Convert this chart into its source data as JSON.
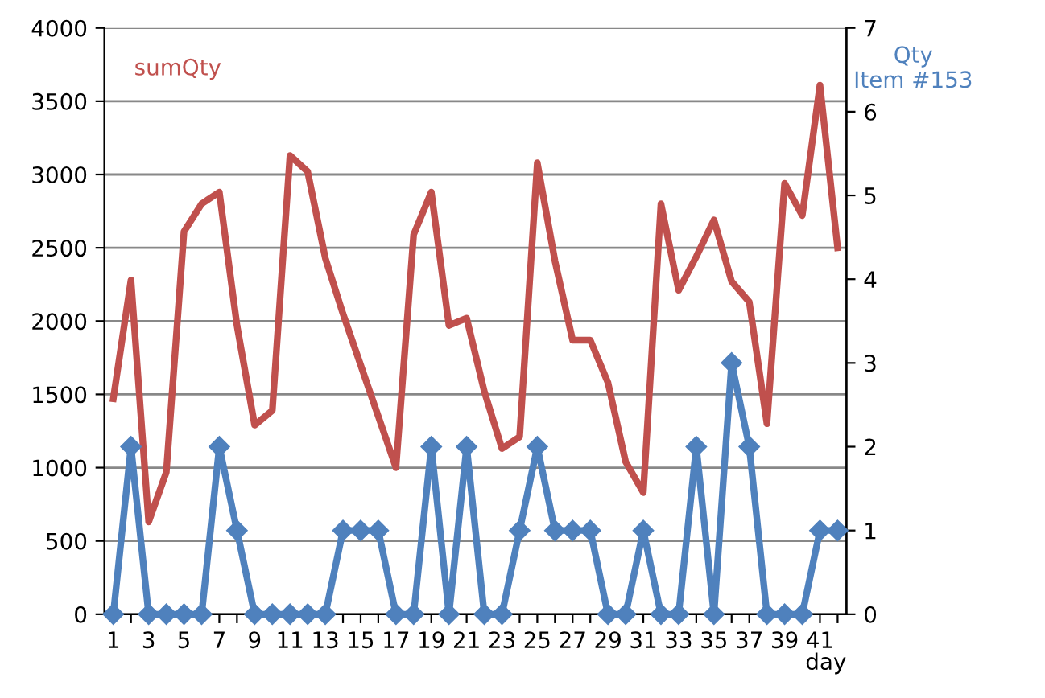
{
  "chart_data": {
    "type": "line",
    "xlabel": "day",
    "categories": [
      "1",
      null,
      "3",
      null,
      "5",
      null,
      "7",
      null,
      "9",
      null,
      "11",
      null,
      "13",
      null,
      "15",
      null,
      "17",
      null,
      "19",
      null,
      "21",
      null,
      "23",
      null,
      "25",
      null,
      "27",
      null,
      "29",
      null,
      "31",
      null,
      "33",
      null,
      "35",
      null,
      "37",
      null,
      "39",
      null,
      "41",
      null
    ],
    "series": [
      {
        "name": "sumQty",
        "color": "#c0504d",
        "marker": "none",
        "values": [
          1470,
          2280,
          630,
          970,
          2610,
          2800,
          2880,
          1970,
          1290,
          1390,
          3130,
          3020,
          2430,
          2050,
          1700,
          1350,
          1000,
          2590,
          2880,
          1970,
          2020,
          1520,
          1130,
          1210,
          3080,
          2410,
          1870,
          1870,
          1580,
          1040,
          830,
          2800,
          2210,
          2440,
          2690,
          2270,
          2130,
          1300,
          2940,
          2720,
          3610,
          2500
        ]
      },
      {
        "name": "Qty\nItem #153",
        "color": "#4f81bd",
        "marker": "diamond",
        "axis": "y2",
        "values": [
          0,
          2,
          0,
          0,
          0,
          0,
          2,
          1,
          0,
          0,
          0,
          0,
          0,
          1,
          1,
          1,
          0,
          0,
          2,
          0,
          2,
          0,
          0,
          1,
          2,
          1,
          1,
          1,
          0,
          0,
          1,
          0,
          0,
          2,
          0,
          3,
          2,
          0,
          0,
          0,
          1,
          1
        ]
      }
    ],
    "ylim": [
      0,
      4000
    ],
    "yticks": [
      0,
      500,
      1000,
      1500,
      2000,
      2500,
      3000,
      3500,
      4000
    ],
    "y2lim": [
      0,
      7
    ],
    "y2ticks": [
      0,
      1,
      2,
      3,
      4,
      5,
      6,
      7
    ],
    "grid": "y",
    "legend": false
  }
}
